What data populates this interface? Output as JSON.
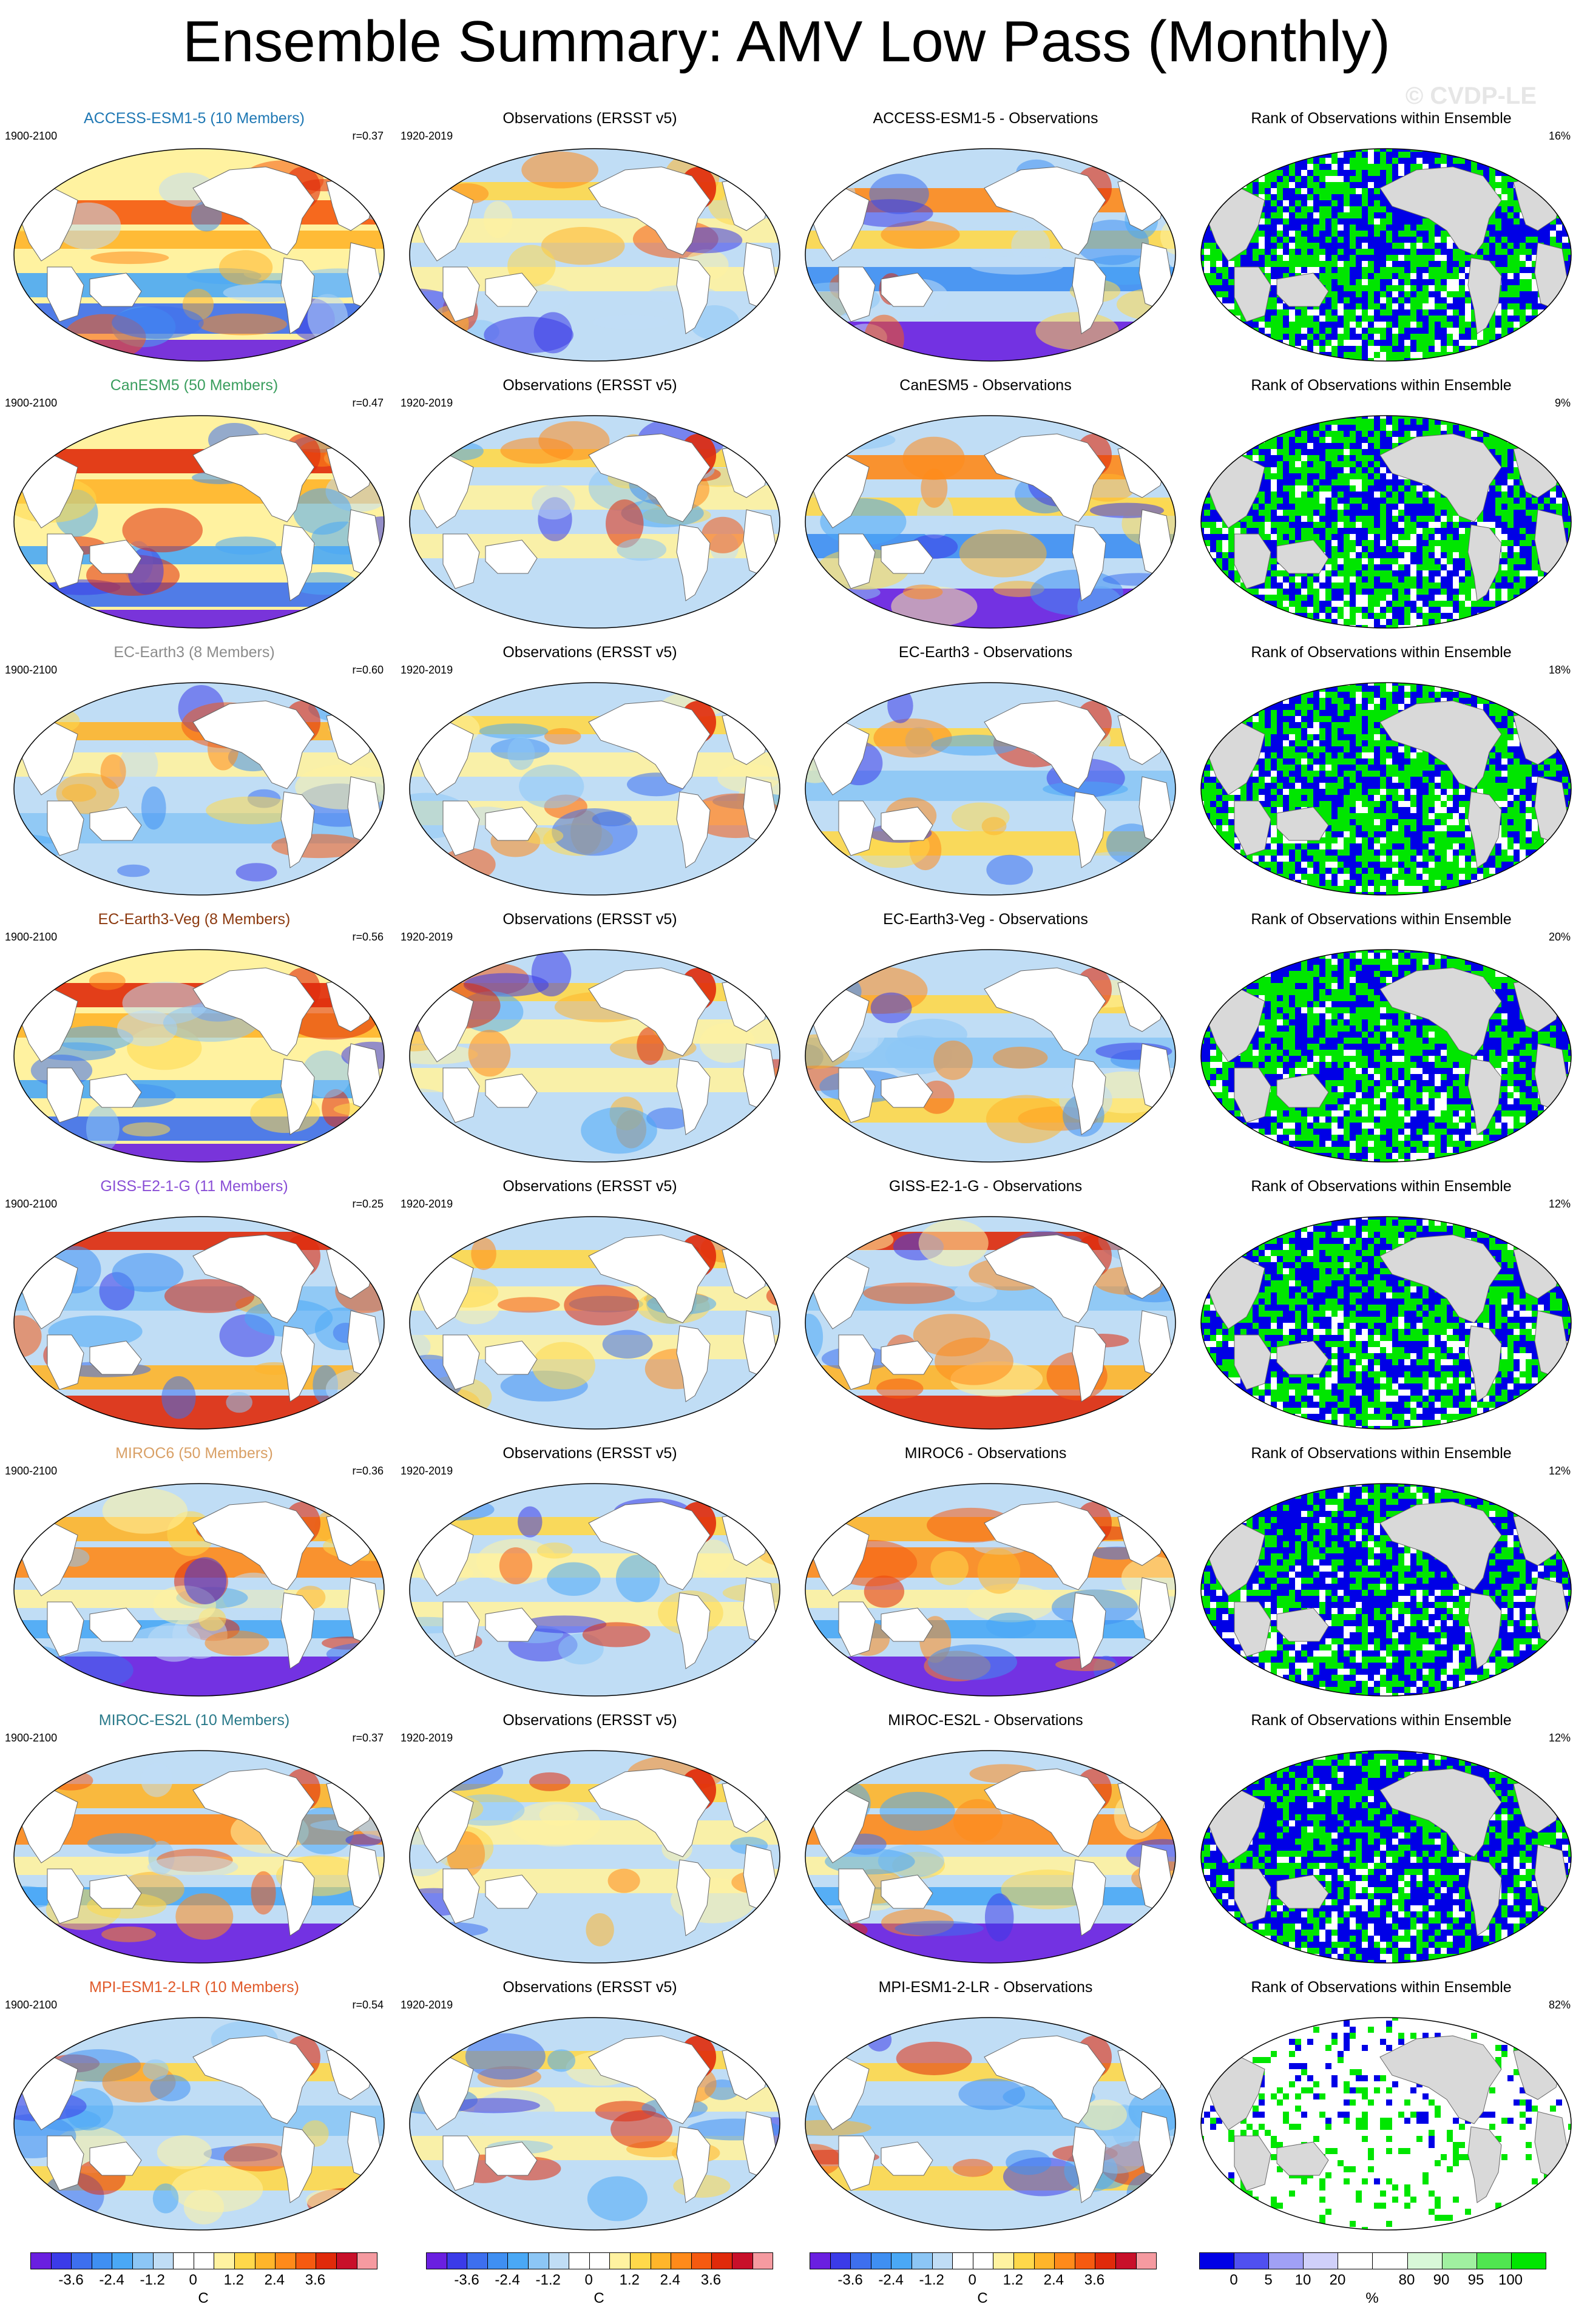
{
  "title": "Ensemble Summary: AMV Low Pass (Monthly)",
  "watermark": "© CVDP-LE",
  "colors": {
    "ocean_land": "#d9d9d9",
    "rank_low": "#0000e6",
    "rank_high": "#00e600",
    "rank_mid": "#ffffff"
  },
  "rows": [
    {
      "model_title": "ACCESS-ESM1-5 (10 Members)",
      "model_color": "#1f78b4",
      "model_period": "1900-2100",
      "r": "r=0.37",
      "obs_title": "Observations (ERSST v5)",
      "obs_period": "1920-2019",
      "diff_title": "ACCESS-ESM1-5 - Observations",
      "rank_title": "Rank of Observations within Ensemble",
      "rank_pct": "16%",
      "model_pattern": "warm",
      "diff_pattern": "mixed",
      "rank_mix": [
        0.45,
        0.45
      ]
    },
    {
      "model_title": "CanESM5 (50 Members)",
      "model_color": "#3a9e5e",
      "model_period": "1900-2100",
      "r": "r=0.47",
      "obs_title": "Observations (ERSST v5)",
      "obs_period": "1920-2019",
      "diff_title": "CanESM5 - Observations",
      "rank_title": "Rank of Observations within Ensemble",
      "rank_pct": "9%",
      "model_pattern": "warmnorth",
      "diff_pattern": "mixed",
      "rank_mix": [
        0.45,
        0.45
      ]
    },
    {
      "model_title": "EC-Earth3 (8 Members)",
      "model_color": "#8c8c8c",
      "model_period": "1900-2100",
      "r": "r=0.60",
      "obs_title": "Observations (ERSST v5)",
      "obs_period": "1920-2019",
      "diff_title": "EC-Earth3 - Observations",
      "rank_title": "Rank of Observations within Ensemble",
      "rank_pct": "18%",
      "model_pattern": "mild",
      "diff_pattern": "cool",
      "rank_mix": [
        0.4,
        0.5
      ]
    },
    {
      "model_title": "EC-Earth3-Veg (8 Members)",
      "model_color": "#8c3a10",
      "model_period": "1900-2100",
      "r": "r=0.56",
      "obs_title": "Observations (ERSST v5)",
      "obs_period": "1920-2019",
      "diff_title": "EC-Earth3-Veg - Observations",
      "rank_title": "Rank of Observations within Ensemble",
      "rank_pct": "20%",
      "model_pattern": "warmnorth",
      "diff_pattern": "cool",
      "rank_mix": [
        0.4,
        0.5
      ]
    },
    {
      "model_title": "GISS-E2-1-G (11 Members)",
      "model_color": "#8a4fd6",
      "model_period": "1900-2100",
      "r": "r=0.25",
      "obs_title": "Observations (ERSST v5)",
      "obs_period": "1920-2019",
      "diff_title": "GISS-E2-1-G - Observations",
      "rank_title": "Rank of Observations within Ensemble",
      "rank_pct": "12%",
      "model_pattern": "warmsouth",
      "diff_pattern": "warmsouth",
      "rank_mix": [
        0.45,
        0.45
      ]
    },
    {
      "model_title": "MIROC6 (50 Members)",
      "model_color": "#d9a066",
      "model_period": "1900-2100",
      "r": "r=0.36",
      "obs_title": "Observations (ERSST v5)",
      "obs_period": "1920-2019",
      "diff_title": "MIROC6 - Observations",
      "rank_title": "Rank of Observations within Ensemble",
      "rank_pct": "12%",
      "model_pattern": "warmcoldsouth",
      "diff_pattern": "warmcoldsouth",
      "rank_mix": [
        0.55,
        0.35
      ]
    },
    {
      "model_title": "MIROC-ES2L (10 Members)",
      "model_color": "#2a7a8a",
      "model_period": "1900-2100",
      "r": "r=0.37",
      "obs_title": "Observations (ERSST v5)",
      "obs_period": "1920-2019",
      "diff_title": "MIROC-ES2L - Observations",
      "rank_title": "Rank of Observations within Ensemble",
      "rank_pct": "12%",
      "model_pattern": "warmcoldsouth",
      "diff_pattern": "warmcoldsouth",
      "rank_mix": [
        0.55,
        0.35
      ]
    },
    {
      "model_title": "MPI-ESM1-2-LR (10 Members)",
      "model_color": "#e05a2a",
      "model_period": "1900-2100",
      "r": "r=0.54",
      "obs_title": "Observations (ERSST v5)",
      "obs_period": "1920-2019",
      "diff_title": "MPI-ESM1-2-LR - Observations",
      "rank_title": "Rank of Observations within Ensemble",
      "rank_pct": "82%",
      "model_pattern": "cool",
      "diff_pattern": "cool",
      "rank_mix": [
        0.08,
        0.12
      ]
    }
  ],
  "colorbars": [
    {
      "unit": "C",
      "colors": [
        "#6a1fe0",
        "#3b3be8",
        "#3d6fee",
        "#3f8ff2",
        "#4aa8f5",
        "#8cc6f5",
        "#c0ddf5",
        "#ffffff",
        "#ffffff",
        "#fff2a0",
        "#ffd84a",
        "#ffb52a",
        "#ff8a1a",
        "#f55a10",
        "#e02a0a",
        "#c8102a",
        "#f59aa0"
      ],
      "labels": [
        "-3.6",
        "-2.4",
        "-1.2",
        "0",
        "1.2",
        "2.4",
        "3.6"
      ]
    },
    {
      "unit": "C",
      "colors": [
        "#6a1fe0",
        "#3b3be8",
        "#3d6fee",
        "#3f8ff2",
        "#4aa8f5",
        "#8cc6f5",
        "#c0ddf5",
        "#ffffff",
        "#ffffff",
        "#fff2a0",
        "#ffd84a",
        "#ffb52a",
        "#ff8a1a",
        "#f55a10",
        "#e02a0a",
        "#c8102a",
        "#f59aa0"
      ],
      "labels": [
        "-3.6",
        "-2.4",
        "-1.2",
        "0",
        "1.2",
        "2.4",
        "3.6"
      ]
    },
    {
      "unit": "C",
      "colors": [
        "#6a1fe0",
        "#3b3be8",
        "#3d6fee",
        "#3f8ff2",
        "#4aa8f5",
        "#8cc6f5",
        "#c0ddf5",
        "#ffffff",
        "#ffffff",
        "#fff2a0",
        "#ffd84a",
        "#ffb52a",
        "#ff8a1a",
        "#f55a10",
        "#e02a0a",
        "#c8102a",
        "#f59aa0"
      ],
      "labels": [
        "-3.6",
        "-2.4",
        "-1.2",
        "0",
        "1.2",
        "2.4",
        "3.6"
      ]
    },
    {
      "unit": "%",
      "colors": [
        "#0000e6",
        "#5050f0",
        "#a0a0f5",
        "#d0d0fa",
        "#ffffff",
        "#ffffff",
        "#d8f8d8",
        "#a0f0a0",
        "#50e650",
        "#00e600"
      ],
      "labels": [
        "0",
        "5",
        "10",
        "20",
        "80",
        "90",
        "95",
        "100"
      ]
    }
  ]
}
